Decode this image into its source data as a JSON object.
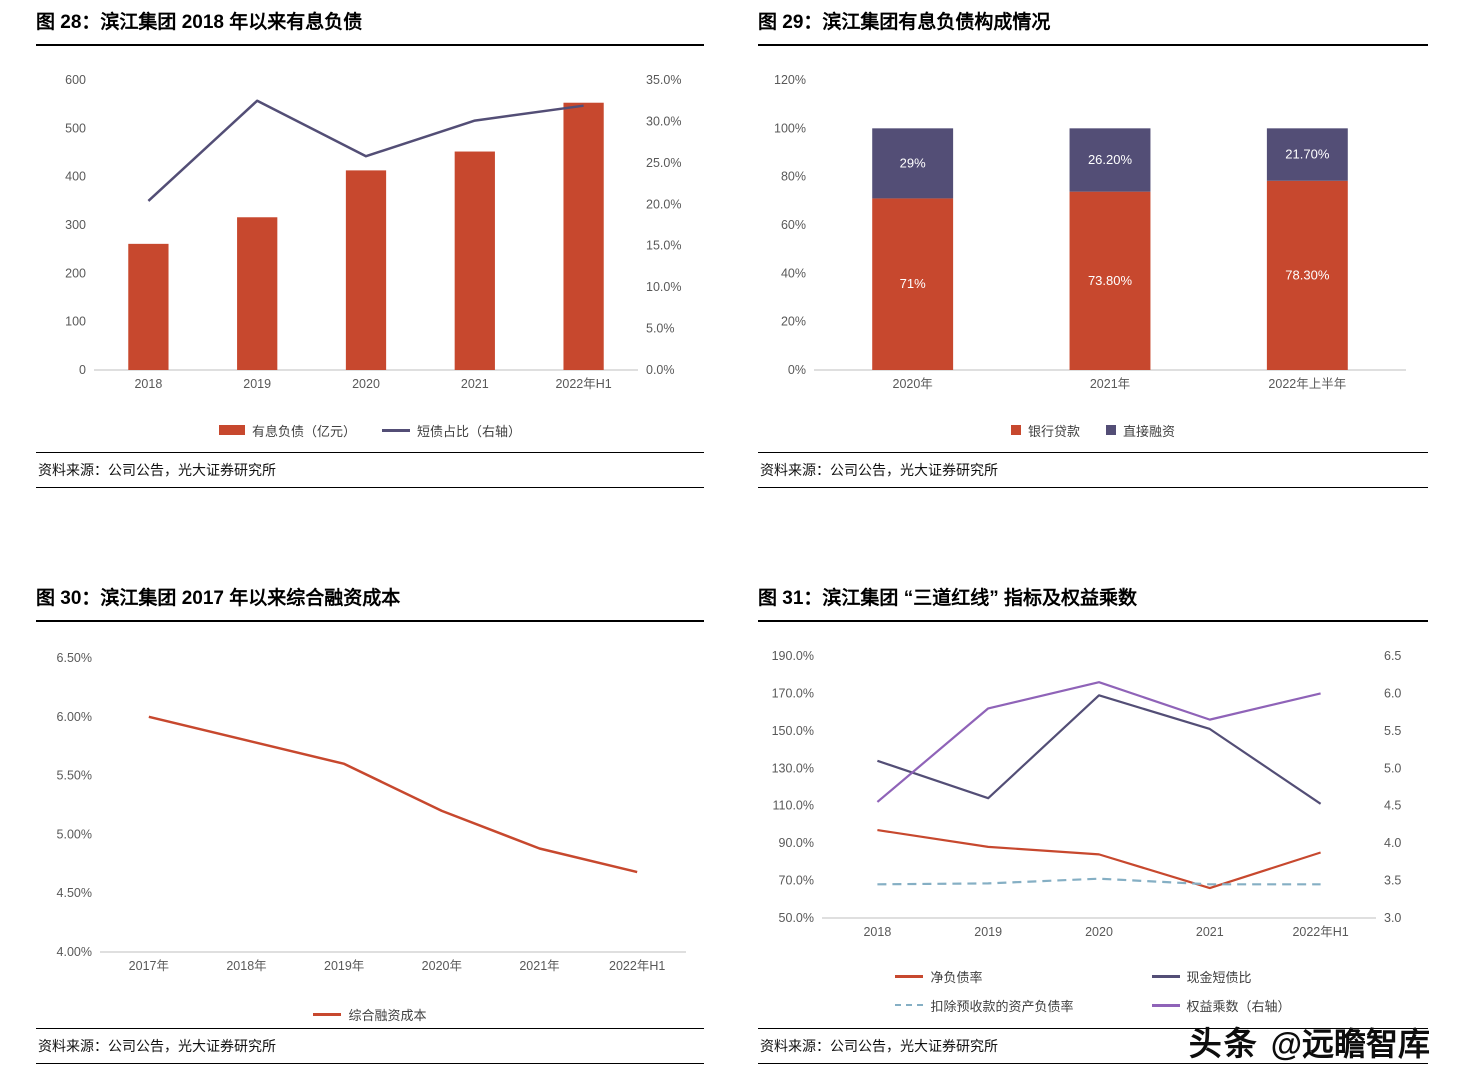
{
  "watermark": {
    "brand": "头条",
    "handle": "@远瞻智库"
  },
  "figures": [
    {
      "title": "图 28：滨江集团 2018 年以来有息负债",
      "source": "资料来源：公司公告，光大证券研究所",
      "chart": {
        "type": "combo",
        "categories": [
          "2018",
          "2019",
          "2020",
          "2021",
          "2022年H1"
        ],
        "left_axis": {
          "min": 0,
          "max": 600,
          "step": 100,
          "format": "int"
        },
        "right_axis": {
          "min": 0,
          "max": 35,
          "step": 5,
          "format": "pct1"
        },
        "series": [
          {
            "name": "有息负债（亿元）",
            "type": "bar",
            "axis": "left",
            "color": "#C7482E",
            "values": [
              261,
              316,
              413,
              452,
              553
            ]
          },
          {
            "name": "短债占比（右轴）",
            "type": "line",
            "axis": "right",
            "color": "#534E76",
            "values": [
              20.4,
              32.5,
              25.8,
              30.1,
              31.9
            ]
          }
        ]
      }
    },
    {
      "title": "图 29：滨江集团有息负债构成情况",
      "source": "资料来源：公司公告，光大证券研究所",
      "chart": {
        "type": "stacked-bar",
        "categories": [
          "2020年",
          "2021年",
          "2022年上半年"
        ],
        "left_axis": {
          "min": 0,
          "max": 120,
          "step": 20,
          "format": "pct0"
        },
        "series": [
          {
            "name": "银行贷款",
            "color": "#C7482E",
            "values": [
              71,
              73.8,
              78.3
            ],
            "labels": [
              "71%",
              "73.80%",
              "78.30%"
            ]
          },
          {
            "name": "直接融资",
            "color": "#534E76",
            "values": [
              29,
              26.2,
              21.7
            ],
            "labels": [
              "29%",
              "26.20%",
              "21.70%"
            ]
          }
        ]
      }
    },
    {
      "title": "图 30：滨江集团 2017 年以来综合融资成本",
      "source": "资料来源：公司公告，光大证券研究所",
      "chart": {
        "type": "line",
        "categories": [
          "2017年",
          "2018年",
          "2019年",
          "2020年",
          "2021年",
          "2022年H1"
        ],
        "left_axis": {
          "min": 4.0,
          "max": 6.5,
          "step": 0.5,
          "format": "pct2"
        },
        "series": [
          {
            "name": "综合融资成本",
            "axis": "left",
            "color": "#C7482E",
            "values": [
              6.0,
              5.8,
              5.6,
              5.2,
              4.88,
              4.68
            ]
          }
        ]
      }
    },
    {
      "title": "图 31：滨江集团 “三道红线” 指标及权益乘数",
      "source": "资料来源：公司公告，光大证券研究所",
      "chart": {
        "type": "line",
        "categories": [
          "2018",
          "2019",
          "2020",
          "2021",
          "2022年H1"
        ],
        "left_axis": {
          "min": 50,
          "max": 190,
          "step": 20,
          "format": "pct1"
        },
        "right_axis": {
          "min": 3.0,
          "max": 6.5,
          "step": 0.5,
          "format": "dec1"
        },
        "series": [
          {
            "name": "净负债率",
            "axis": "left",
            "color": "#C7482E",
            "values": [
              97,
              88,
              84,
              66,
              85
            ]
          },
          {
            "name": "现金短债比",
            "axis": "left",
            "color": "#534E76",
            "values": [
              134,
              114,
              169,
              151,
              111
            ]
          },
          {
            "name": "扣除预收款的资产负债率",
            "axis": "left",
            "color": "#85AFC4",
            "dash": true,
            "values": [
              68,
              68.5,
              71,
              68,
              68
            ]
          },
          {
            "name": "权益乘数（右轴）",
            "axis": "right",
            "color": "#8F63B8",
            "values": [
              4.55,
              5.8,
              6.15,
              5.65,
              6.0
            ]
          }
        ]
      }
    }
  ]
}
